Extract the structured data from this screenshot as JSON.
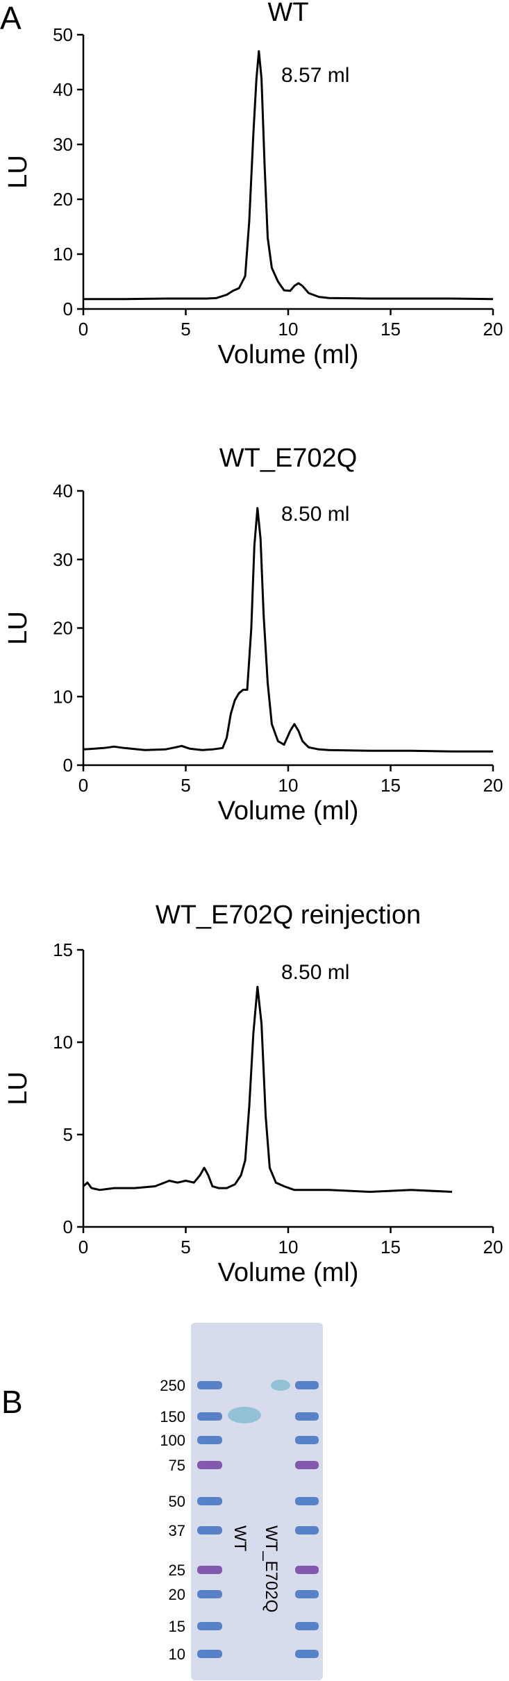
{
  "figure": {
    "panel_a": "A",
    "panel_b": "B"
  },
  "chart_data": [
    {
      "type": "line",
      "title": "WT",
      "xlabel": "Volume (ml)",
      "ylabel": "LU",
      "xlim": [
        0,
        20
      ],
      "ylim": [
        0,
        50
      ],
      "xticks": [
        0,
        5,
        10,
        15,
        20
      ],
      "yticks": [
        0,
        10,
        20,
        30,
        40,
        50
      ],
      "annotation": "8.57 ml",
      "grid": false,
      "line_color": "#000000",
      "series": [
        {
          "x": [
            0,
            2,
            4,
            6,
            6.5,
            7,
            7.3,
            7.6,
            7.9,
            8.1,
            8.3,
            8.45,
            8.57,
            8.7,
            8.85,
            9.0,
            9.2,
            9.5,
            9.8,
            10.1,
            10.3,
            10.5,
            10.7,
            11.0,
            11.5,
            12,
            14,
            16,
            18,
            20
          ],
          "y": [
            1.8,
            1.8,
            1.9,
            1.9,
            2.0,
            2.6,
            3.3,
            3.8,
            6,
            16,
            32,
            42,
            47,
            42,
            26,
            13,
            7.5,
            5,
            3.4,
            3.3,
            4.2,
            4.7,
            4.2,
            2.9,
            2.2,
            2.0,
            1.9,
            1.9,
            1.9,
            1.8
          ]
        }
      ]
    },
    {
      "type": "line",
      "title": "WT_E702Q",
      "xlabel": "Volume (ml)",
      "ylabel": "LU",
      "xlim": [
        0,
        20
      ],
      "ylim": [
        0,
        40
      ],
      "xticks": [
        0,
        5,
        10,
        15,
        20
      ],
      "yticks": [
        0,
        10,
        20,
        30,
        40
      ],
      "annotation": "8.50 ml",
      "grid": false,
      "line_color": "#000000",
      "series": [
        {
          "x": [
            0,
            1,
            1.5,
            2,
            3,
            4,
            4.5,
            4.8,
            5.2,
            5.8,
            6.3,
            6.8,
            7.0,
            7.2,
            7.4,
            7.6,
            7.8,
            8.0,
            8.2,
            8.35,
            8.5,
            8.65,
            8.8,
            9.0,
            9.2,
            9.5,
            9.8,
            10.1,
            10.3,
            10.5,
            10.7,
            11.0,
            11.5,
            12,
            14,
            16,
            18,
            20
          ],
          "y": [
            2.3,
            2.5,
            2.7,
            2.5,
            2.2,
            2.3,
            2.6,
            2.8,
            2.4,
            2.2,
            2.3,
            2.5,
            4,
            7.5,
            9.5,
            10.5,
            11,
            11,
            20,
            32,
            37.5,
            33,
            22,
            12,
            6,
            3.5,
            3.0,
            5,
            6,
            5,
            3.5,
            2.6,
            2.3,
            2.2,
            2.1,
            2.1,
            2.0,
            2.0
          ]
        }
      ]
    },
    {
      "type": "line",
      "title": "WT_E702Q reinjection",
      "xlabel": "Volume (ml)",
      "ylabel": "LU",
      "xlim": [
        0,
        20
      ],
      "ylim": [
        0,
        15
      ],
      "xticks": [
        0,
        5,
        10,
        15,
        20
      ],
      "yticks": [
        0,
        5,
        10,
        15
      ],
      "annotation": "8.50 ml",
      "grid": false,
      "line_color": "#000000",
      "series": [
        {
          "x": [
            0,
            0.2,
            0.4,
            0.8,
            1.5,
            2.5,
            3.5,
            4.2,
            4.6,
            5.0,
            5.4,
            5.7,
            5.9,
            6.1,
            6.3,
            6.6,
            7.0,
            7.4,
            7.7,
            7.9,
            8.1,
            8.3,
            8.5,
            8.7,
            8.9,
            9.1,
            9.4,
            9.8,
            10.3,
            11,
            12,
            14,
            16,
            18
          ],
          "y": [
            2.2,
            2.4,
            2.1,
            2.0,
            2.1,
            2.1,
            2.2,
            2.5,
            2.4,
            2.5,
            2.4,
            2.8,
            3.2,
            2.8,
            2.2,
            2.1,
            2.1,
            2.3,
            2.8,
            3.6,
            6.5,
            10.5,
            13,
            11,
            6,
            3.2,
            2.4,
            2.2,
            2.0,
            2.0,
            2.0,
            1.9,
            2.0,
            1.9
          ]
        }
      ]
    }
  ],
  "gel": {
    "markers": [
      "250",
      "150",
      "100",
      "75",
      "50",
      "37",
      "25",
      "20",
      "15",
      "10"
    ],
    "lanes": [
      "WT",
      "WT_E702Q"
    ],
    "ladder_blue": "#4a78c4",
    "ladder_purple": "#7a4aa8",
    "gel_background": "#d6dcec",
    "sample_band_color": "#93c2d6"
  }
}
